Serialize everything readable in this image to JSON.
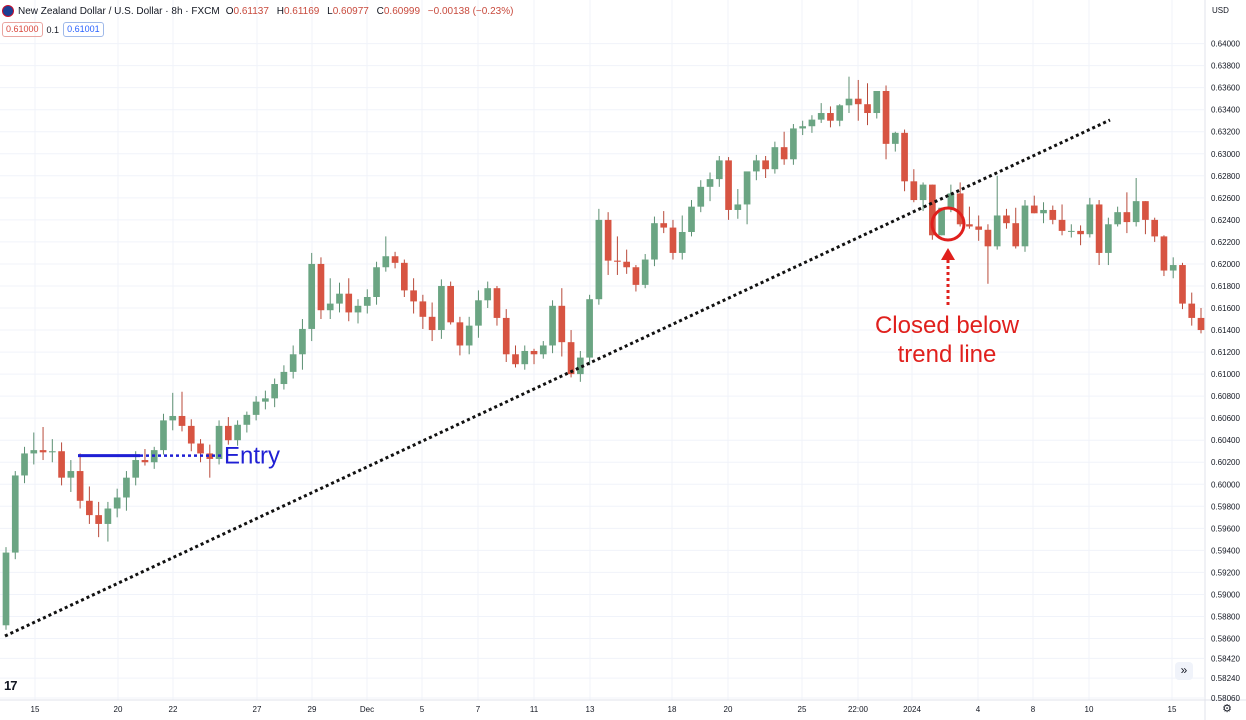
{
  "header": {
    "symbol": "New Zealand Dollar / U.S. Dollar · 8h · FXCM",
    "open_label": "O",
    "open": "0.61137",
    "high_label": "H",
    "high": "0.61169",
    "low_label": "L",
    "low": "0.60977",
    "close_label": "C",
    "close": "0.60999",
    "change": "−0.00138 (−0.23%)"
  },
  "quote": {
    "sell": "0.61000",
    "spread": "0.1",
    "buy": "0.61001"
  },
  "currency": "USD",
  "colors": {
    "up": "#6ba583",
    "down": "#d75442",
    "annotation_red": "#e0201d",
    "entry_blue": "#1f1fd4",
    "trend": "#111111"
  },
  "chart_data": {
    "type": "candlestick",
    "y_axis": {
      "ticks": [
        "0.64000",
        "0.63800",
        "0.63600",
        "0.63400",
        "0.63200",
        "0.63000",
        "0.62800",
        "0.62600",
        "0.62400",
        "0.62200",
        "0.62000",
        "0.61800",
        "0.61600",
        "0.61400",
        "0.61200",
        "0.61000",
        "0.60800",
        "0.60600",
        "0.60400",
        "0.60200",
        "0.60000",
        "0.59800",
        "0.59600",
        "0.59400",
        "0.59200",
        "0.59000",
        "0.58800",
        "0.58600",
        "0.58420",
        "0.58240",
        "0.58060"
      ],
      "range": [
        0.5806,
        0.6406
      ]
    },
    "x_axis": {
      "labels": [
        "15",
        "20",
        "22",
        "27",
        "29",
        "Dec",
        "5",
        "7",
        "11",
        "13",
        "18",
        "20",
        "25",
        "22:00",
        "2024",
        "4",
        "8",
        "10",
        "15"
      ]
    },
    "candle_series": [
      [
        0.5872,
        0.5943,
        0.5868,
        0.5938
      ],
      [
        0.5938,
        0.6012,
        0.5932,
        0.6008
      ],
      [
        0.6008,
        0.6034,
        0.6001,
        0.6028
      ],
      [
        0.6028,
        0.6047,
        0.6018,
        0.6031
      ],
      [
        0.6031,
        0.6052,
        0.6022,
        0.6029
      ],
      [
        0.6029,
        0.6041,
        0.602,
        0.603
      ],
      [
        0.603,
        0.6038,
        0.5999,
        0.6006
      ],
      [
        0.6006,
        0.6022,
        0.5993,
        0.6012
      ],
      [
        0.6012,
        0.6028,
        0.5978,
        0.5985
      ],
      [
        0.5985,
        0.5998,
        0.5964,
        0.5972
      ],
      [
        0.5972,
        0.5984,
        0.5952,
        0.5964
      ],
      [
        0.5964,
        0.5984,
        0.5948,
        0.5978
      ],
      [
        0.5978,
        0.5996,
        0.597,
        0.5988
      ],
      [
        0.5988,
        0.6012,
        0.5976,
        0.6006
      ],
      [
        0.6006,
        0.603,
        0.5999,
        0.6022
      ],
      [
        0.6022,
        0.6032,
        0.6017,
        0.602
      ],
      [
        0.602,
        0.6034,
        0.6014,
        0.6031
      ],
      [
        0.6031,
        0.6064,
        0.6027,
        0.6058
      ],
      [
        0.6058,
        0.6083,
        0.6049,
        0.6062
      ],
      [
        0.6062,
        0.6084,
        0.6048,
        0.6053
      ],
      [
        0.6053,
        0.6059,
        0.603,
        0.6037
      ],
      [
        0.6037,
        0.6041,
        0.602,
        0.6028
      ],
      [
        0.6028,
        0.6036,
        0.6006,
        0.6023
      ],
      [
        0.6023,
        0.6058,
        0.6018,
        0.6053
      ],
      [
        0.6053,
        0.6061,
        0.6036,
        0.604
      ],
      [
        0.604,
        0.6058,
        0.6035,
        0.6054
      ],
      [
        0.6054,
        0.6066,
        0.6047,
        0.6063
      ],
      [
        0.6063,
        0.608,
        0.6058,
        0.6075
      ],
      [
        0.6075,
        0.6085,
        0.6068,
        0.6078
      ],
      [
        0.6078,
        0.6096,
        0.607,
        0.6091
      ],
      [
        0.6091,
        0.6108,
        0.6086,
        0.6102
      ],
      [
        0.6102,
        0.6126,
        0.6096,
        0.6118
      ],
      [
        0.6118,
        0.615,
        0.6104,
        0.6141
      ],
      [
        0.6141,
        0.621,
        0.613,
        0.62
      ],
      [
        0.62,
        0.6206,
        0.615,
        0.6158
      ],
      [
        0.6158,
        0.6187,
        0.615,
        0.6164
      ],
      [
        0.6164,
        0.6183,
        0.6156,
        0.6173
      ],
      [
        0.6173,
        0.6187,
        0.6148,
        0.6156
      ],
      [
        0.6156,
        0.6168,
        0.6146,
        0.6162
      ],
      [
        0.6162,
        0.6177,
        0.6155,
        0.617
      ],
      [
        0.617,
        0.6202,
        0.6163,
        0.6197
      ],
      [
        0.6197,
        0.6225,
        0.6193,
        0.6207
      ],
      [
        0.6207,
        0.6211,
        0.6196,
        0.6201
      ],
      [
        0.6201,
        0.6204,
        0.617,
        0.6176
      ],
      [
        0.6176,
        0.6187,
        0.6155,
        0.6166
      ],
      [
        0.6166,
        0.6172,
        0.6141,
        0.6152
      ],
      [
        0.6152,
        0.6165,
        0.613,
        0.614
      ],
      [
        0.614,
        0.6186,
        0.6132,
        0.618
      ],
      [
        0.618,
        0.6184,
        0.6145,
        0.6147
      ],
      [
        0.6147,
        0.6152,
        0.6117,
        0.6126
      ],
      [
        0.6126,
        0.6152,
        0.6118,
        0.6144
      ],
      [
        0.6144,
        0.6176,
        0.6133,
        0.6167
      ],
      [
        0.6167,
        0.6184,
        0.616,
        0.6178
      ],
      [
        0.6178,
        0.618,
        0.6144,
        0.6151
      ],
      [
        0.6151,
        0.6159,
        0.6111,
        0.6118
      ],
      [
        0.6118,
        0.6126,
        0.6106,
        0.6109
      ],
      [
        0.6109,
        0.6126,
        0.6104,
        0.6121
      ],
      [
        0.6121,
        0.6123,
        0.6109,
        0.6118
      ],
      [
        0.6118,
        0.613,
        0.6114,
        0.6126
      ],
      [
        0.6126,
        0.6167,
        0.6119,
        0.6162
      ],
      [
        0.6162,
        0.6178,
        0.6116,
        0.6129
      ],
      [
        0.6129,
        0.614,
        0.6097,
        0.61
      ],
      [
        0.61,
        0.6121,
        0.6093,
        0.6115
      ],
      [
        0.6115,
        0.6172,
        0.6108,
        0.6168
      ],
      [
        0.6168,
        0.625,
        0.6163,
        0.624
      ],
      [
        0.624,
        0.6247,
        0.619,
        0.6203
      ],
      [
        0.6203,
        0.6225,
        0.619,
        0.6202
      ],
      [
        0.6202,
        0.6213,
        0.6191,
        0.6197
      ],
      [
        0.6197,
        0.6199,
        0.6175,
        0.6181
      ],
      [
        0.6181,
        0.6209,
        0.6178,
        0.6204
      ],
      [
        0.6204,
        0.6243,
        0.6198,
        0.6237
      ],
      [
        0.6237,
        0.6248,
        0.6228,
        0.6233
      ],
      [
        0.6233,
        0.624,
        0.6204,
        0.621
      ],
      [
        0.621,
        0.6244,
        0.6204,
        0.6229
      ],
      [
        0.6229,
        0.6258,
        0.6225,
        0.6252
      ],
      [
        0.6252,
        0.6276,
        0.6247,
        0.627
      ],
      [
        0.627,
        0.6283,
        0.6257,
        0.6277
      ],
      [
        0.6277,
        0.6298,
        0.627,
        0.6294
      ],
      [
        0.6294,
        0.6297,
        0.624,
        0.6249
      ],
      [
        0.6249,
        0.6268,
        0.6241,
        0.6254
      ],
      [
        0.6254,
        0.6279,
        0.6236,
        0.6284
      ],
      [
        0.6284,
        0.6299,
        0.6276,
        0.6294
      ],
      [
        0.6294,
        0.6298,
        0.6278,
        0.6286
      ],
      [
        0.6286,
        0.6311,
        0.6282,
        0.6306
      ],
      [
        0.6306,
        0.632,
        0.629,
        0.6295
      ],
      [
        0.6295,
        0.6327,
        0.629,
        0.6323
      ],
      [
        0.6323,
        0.633,
        0.6317,
        0.6325
      ],
      [
        0.6325,
        0.6335,
        0.6319,
        0.6331
      ],
      [
        0.6331,
        0.6346,
        0.6328,
        0.6337
      ],
      [
        0.6337,
        0.6343,
        0.6324,
        0.633
      ],
      [
        0.633,
        0.6345,
        0.6325,
        0.6344
      ],
      [
        0.6344,
        0.637,
        0.6337,
        0.635
      ],
      [
        0.635,
        0.6367,
        0.633,
        0.6345
      ],
      [
        0.6345,
        0.6364,
        0.6326,
        0.6337
      ],
      [
        0.6337,
        0.6356,
        0.6332,
        0.6357
      ],
      [
        0.6357,
        0.6362,
        0.6295,
        0.6309
      ],
      [
        0.6309,
        0.632,
        0.6302,
        0.6319
      ],
      [
        0.6319,
        0.6322,
        0.6266,
        0.6275
      ],
      [
        0.6275,
        0.6286,
        0.6256,
        0.6258
      ],
      [
        0.6258,
        0.6274,
        0.6248,
        0.6272
      ],
      [
        0.6272,
        0.6272,
        0.6222,
        0.6226
      ],
      [
        0.6226,
        0.6239,
        0.6226,
        0.6251
      ],
      [
        0.6251,
        0.6272,
        0.6247,
        0.6264
      ],
      [
        0.6264,
        0.6274,
        0.6234,
        0.6236
      ],
      [
        0.6236,
        0.6252,
        0.6232,
        0.6234
      ],
      [
        0.6234,
        0.6244,
        0.6221,
        0.6231
      ],
      [
        0.6231,
        0.6236,
        0.6182,
        0.6216
      ],
      [
        0.6216,
        0.628,
        0.6213,
        0.6244
      ],
      [
        0.6244,
        0.625,
        0.6232,
        0.6237
      ],
      [
        0.6237,
        0.6251,
        0.6214,
        0.6216
      ],
      [
        0.6216,
        0.6258,
        0.6211,
        0.6253
      ],
      [
        0.6253,
        0.6262,
        0.6246,
        0.6246
      ],
      [
        0.6246,
        0.6256,
        0.6237,
        0.6249
      ],
      [
        0.6249,
        0.6253,
        0.6236,
        0.624
      ],
      [
        0.624,
        0.6254,
        0.6226,
        0.623
      ],
      [
        0.623,
        0.6236,
        0.6224,
        0.623
      ],
      [
        0.623,
        0.6235,
        0.6217,
        0.6227
      ],
      [
        0.6227,
        0.626,
        0.6224,
        0.6254
      ],
      [
        0.6254,
        0.6258,
        0.6199,
        0.621
      ],
      [
        0.621,
        0.6242,
        0.6199,
        0.6236
      ],
      [
        0.6236,
        0.6252,
        0.6234,
        0.6247
      ],
      [
        0.6247,
        0.6265,
        0.6228,
        0.6238
      ],
      [
        0.6238,
        0.6278,
        0.6234,
        0.6257
      ],
      [
        0.6257,
        0.6257,
        0.6227,
        0.624
      ],
      [
        0.624,
        0.6242,
        0.622,
        0.6225
      ],
      [
        0.6225,
        0.6226,
        0.6189,
        0.6194
      ],
      [
        0.6194,
        0.6206,
        0.6187,
        0.6199
      ],
      [
        0.6199,
        0.6201,
        0.6159,
        0.6164
      ],
      [
        0.6164,
        0.6174,
        0.6144,
        0.6151
      ],
      [
        0.6151,
        0.616,
        0.6137,
        0.614
      ]
    ],
    "annotations": {
      "entry_label": "Entry",
      "entry_price": 0.6026,
      "close_label_line1": "Closed below",
      "close_label_line2": "trend line"
    }
  }
}
